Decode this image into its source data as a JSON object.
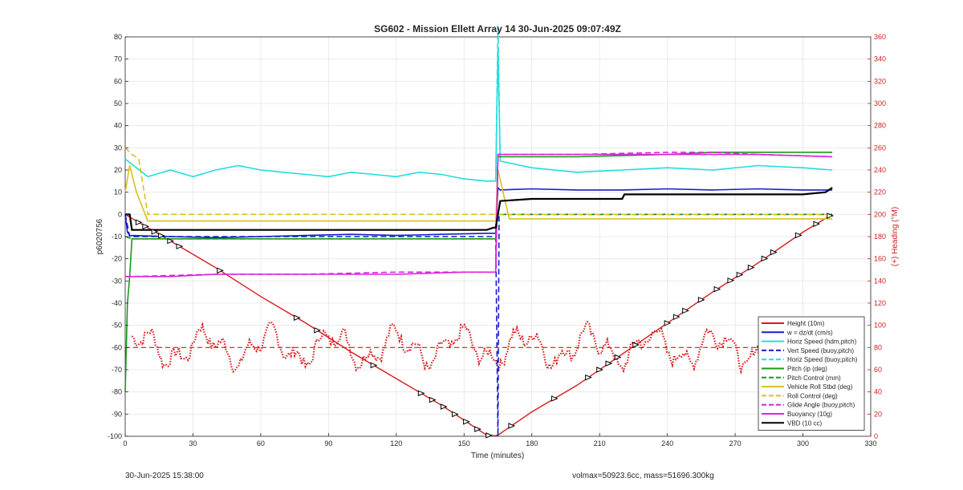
{
  "footer": {
    "timestamp": "30-Jun-2025 15:38:00",
    "volmax_mass": "volmax=50923.6cc, mass=51696.300kg"
  },
  "chart_data": {
    "type": "line",
    "title": "SG602 - Mission Ellett Array 14 30-Jun-2025 09:07:49Z",
    "xlabel": "Time (minutes)",
    "ylabel": "p6020756",
    "y2label": "(+) Heading (°M)",
    "xlim": [
      0,
      330
    ],
    "ylim": [
      -100,
      80
    ],
    "y2lim": [
      0,
      360
    ],
    "xticks": [
      "0",
      "30",
      "60",
      "90",
      "120",
      "150",
      "180",
      "210",
      "240",
      "270",
      "300",
      "330"
    ],
    "yticks": [
      "80",
      "70",
      "60",
      "50",
      "40",
      "30",
      "20",
      "10",
      "0",
      "-10",
      "-20",
      "-30",
      "-40",
      "-50",
      "-60",
      "-70",
      "-80",
      "-90",
      "-100"
    ],
    "y2ticks": [
      "360",
      "340",
      "320",
      "300",
      "280",
      "260",
      "240",
      "220",
      "200",
      "180",
      "160",
      "140",
      "120",
      "100",
      "80",
      "60",
      "40",
      "20",
      "0"
    ],
    "grid": true,
    "legend_position": "lower-right",
    "colors": {
      "red": "#d91a1a",
      "blue": "#1a1acc",
      "cyan": "#22dddd",
      "green": "#1a9a1a",
      "yellow": "#d9c21a",
      "magenta": "#dd22dd",
      "black": "#000000"
    },
    "series": [
      {
        "name": "Height (10m)",
        "color": "red",
        "style": "solid",
        "x": [
          0,
          20,
          40,
          60,
          80,
          100,
          120,
          140,
          160,
          163.5,
          165,
          180,
          200,
          220,
          240,
          260,
          280,
          300,
          313
        ],
        "y": [
          0,
          -12,
          -24,
          -37,
          -49,
          -62,
          -74,
          -86,
          -99.5,
          -99.8,
          -99.5,
          -89,
          -77,
          -63,
          -49,
          -35,
          -22,
          -8,
          0
        ]
      },
      {
        "name": "w = dz/dt (cm/s)",
        "color": "blue",
        "style": "solid",
        "x": [
          0,
          1,
          2,
          20,
          40,
          60,
          80,
          100,
          120,
          140,
          160,
          164,
          165,
          166,
          180,
          200,
          220,
          240,
          260,
          280,
          300,
          313
        ],
        "y": [
          0,
          -8,
          -9.5,
          -10,
          -10.5,
          -10,
          -9.5,
          -9,
          -9.5,
          -9,
          -8.5,
          -8.5,
          12,
          11,
          11.5,
          11,
          11,
          11.5,
          11,
          11.5,
          11,
          11
        ]
      },
      {
        "name": "Horiz Speed (hdm,pitch)",
        "color": "cyan",
        "style": "solid",
        "x": [
          0,
          10,
          20,
          30,
          40,
          50,
          60,
          70,
          80,
          90,
          100,
          110,
          120,
          130,
          140,
          150,
          160,
          164,
          165,
          166,
          180,
          200,
          220,
          240,
          260,
          280,
          300,
          313
        ],
        "y": [
          25,
          17,
          20,
          17,
          20,
          22,
          20,
          19,
          18,
          17,
          19,
          18,
          17,
          19,
          18,
          16,
          15,
          15,
          75,
          24,
          21,
          19,
          20,
          21,
          20,
          22,
          21,
          20
        ]
      },
      {
        "name": "Vert Speed (buoy,pitch)",
        "color": "blue",
        "style": "dashed",
        "x": [
          0,
          2,
          40,
          80,
          120,
          164,
          165,
          165.5,
          200,
          260,
          313
        ],
        "y": [
          0,
          -10,
          -10,
          -10,
          -10,
          -10,
          -100,
          0,
          0,
          0,
          0
        ]
      },
      {
        "name": "Horiz Speed (buoy,pitch)",
        "color": "cyan",
        "style": "dashed",
        "x": [
          164,
          165,
          166
        ],
        "y": [
          15,
          85,
          25
        ]
      },
      {
        "name": "Pitch (ip (deg)",
        "color": "green",
        "style": "solid",
        "x": [
          0,
          1,
          2,
          3,
          20,
          60,
          100,
          140,
          164,
          165,
          166,
          200,
          240,
          260,
          261,
          280,
          313
        ],
        "y": [
          -80,
          -40,
          -28,
          -11,
          -11,
          -11,
          -11,
          -11,
          -11,
          26,
          26,
          26,
          27,
          28,
          28,
          28,
          28
        ]
      },
      {
        "name": "Pitch Control (mm)",
        "color": "green",
        "style": "dashed",
        "x": [
          0,
          3,
          40,
          80,
          120,
          164,
          165,
          200,
          240,
          313
        ],
        "y": [
          -10,
          -11,
          -11,
          -11,
          -11,
          -11,
          0,
          0,
          0,
          0
        ]
      },
      {
        "name": "Vehicle Roll Stbd (deg)",
        "color": "yellow",
        "style": "solid",
        "x": [
          0,
          2,
          5,
          10,
          20,
          40,
          60,
          80,
          100,
          120,
          140,
          164,
          165,
          170,
          200,
          240,
          280,
          313
        ],
        "y": [
          10,
          22,
          10,
          -3,
          -3,
          -3,
          -3,
          -3,
          -3,
          -3,
          -3,
          -3,
          20,
          -2,
          -2,
          -2,
          -2,
          -2
        ]
      },
      {
        "name": "Roll Control (deg)",
        "color": "yellow",
        "style": "dashed",
        "x": [
          0,
          3,
          6,
          10,
          40,
          80,
          120,
          164,
          165,
          200,
          240,
          280,
          313
        ],
        "y": [
          30,
          27,
          25,
          0,
          0,
          0,
          0,
          0,
          0,
          0,
          0,
          0,
          0
        ]
      },
      {
        "name": "Glide Angle (buoy,pitch)",
        "color": "magenta",
        "style": "dashed",
        "x": [
          0,
          3,
          40,
          80,
          120,
          164,
          165,
          200,
          240,
          260,
          280,
          313
        ],
        "y": [
          -28,
          -28,
          -27,
          -27,
          -26,
          -26,
          27,
          27,
          28,
          28,
          27,
          26
        ]
      },
      {
        "name": "Buoyancy (10g)",
        "color": "magenta",
        "style": "solid",
        "x": [
          0,
          3,
          20,
          40,
          80,
          120,
          150,
          164,
          165,
          200,
          240,
          280,
          313
        ],
        "y": [
          -28,
          -28,
          -28,
          -27,
          -27,
          -27,
          -26,
          -26,
          27,
          27,
          27,
          27,
          26
        ]
      },
      {
        "name": "VBD (10 cc)",
        "color": "black",
        "style": "solid",
        "x": [
          0,
          2,
          3,
          160,
          163,
          164,
          166,
          180,
          181,
          220,
          221,
          300,
          310,
          313
        ],
        "y": [
          0,
          0,
          -7,
          -7,
          -6,
          -6,
          6,
          7,
          7,
          7,
          9,
          9,
          10,
          12
        ]
      }
    ],
    "heading": {
      "name": "(+) Heading (°M)",
      "color": "red",
      "style": "dotted-dashed",
      "reference": 80
    }
  }
}
